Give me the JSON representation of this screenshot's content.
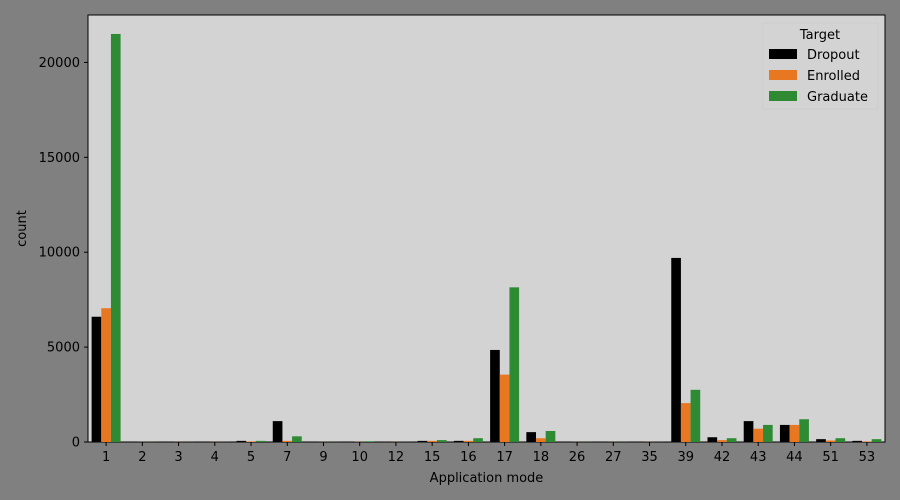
{
  "chart_data": {
    "type": "bar",
    "xlabel": "Application mode",
    "ylabel": "count",
    "ylim": [
      0,
      22500
    ],
    "yticks": [
      0,
      5000,
      10000,
      15000,
      20000
    ],
    "grid": false,
    "legend_title": "Target",
    "legend_position": "top-right",
    "categories": [
      "1",
      "2",
      "3",
      "4",
      "5",
      "7",
      "9",
      "10",
      "12",
      "15",
      "16",
      "17",
      "18",
      "26",
      "27",
      "35",
      "39",
      "42",
      "43",
      "44",
      "51",
      "53"
    ],
    "series": [
      {
        "name": "Dropout",
        "color": "#000000",
        "values": [
          6600,
          5,
          5,
          5,
          60,
          1100,
          5,
          10,
          5,
          60,
          60,
          4850,
          520,
          5,
          5,
          5,
          9700,
          250,
          1100,
          900,
          150,
          60
        ]
      },
      {
        "name": "Enrolled",
        "color": "#e87722",
        "values": [
          7050,
          5,
          5,
          5,
          30,
          60,
          5,
          10,
          5,
          60,
          60,
          3550,
          200,
          5,
          5,
          5,
          2050,
          100,
          700,
          900,
          80,
          30
        ]
      },
      {
        "name": "Graduate",
        "color": "#2e8b34",
        "values": [
          21500,
          5,
          5,
          5,
          60,
          300,
          5,
          40,
          5,
          100,
          200,
          8150,
          580,
          5,
          5,
          5,
          2750,
          200,
          900,
          1200,
          200,
          150
        ]
      }
    ]
  }
}
